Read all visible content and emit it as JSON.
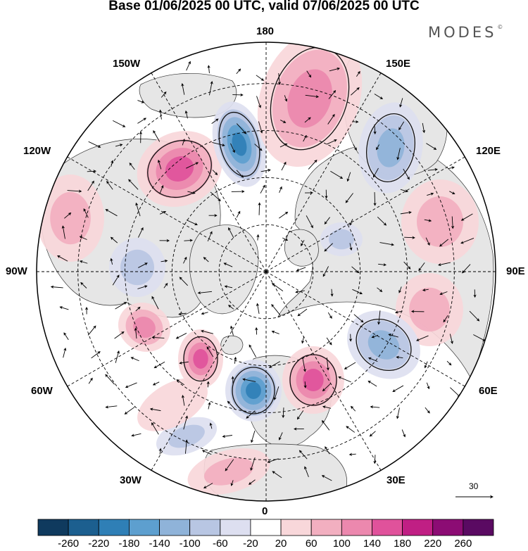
{
  "title": "Base 01/06/2025 00 UTC, valid 07/06/2025 00 UTC",
  "brand": "MODES",
  "brand_mark": "©",
  "longitude_labels": {
    "top": "180",
    "bottom": "0",
    "left": "90W",
    "right": "90E",
    "upper_left_outer": "120W",
    "upper_left_inner": "150W",
    "upper_right_inner": "150E",
    "upper_right_outer": "120E",
    "lower_left_outer": "60W",
    "lower_left_inner": "30W",
    "lower_right_inner": "30E",
    "lower_right_outer": "60E"
  },
  "vector_reference": {
    "value": "30"
  },
  "colorbar": {
    "labels": [
      "-260",
      "-220",
      "-180",
      "-140",
      "-100",
      "-60",
      "-20",
      "20",
      "60",
      "100",
      "140",
      "180",
      "220",
      "260"
    ],
    "colors": [
      "#0f3a5e",
      "#1c5f8f",
      "#2f7fb6",
      "#5d9fcf",
      "#8fb3d9",
      "#b8c6e3",
      "#dddff0",
      "#ffffff",
      "#f8d7da",
      "#f2afc0",
      "#ec88ae",
      "#e0529b",
      "#c01f84",
      "#8c0c74",
      "#5a0a62"
    ]
  },
  "map_colors": {
    "land": "#e6e6e6",
    "ocean": "#ffffff",
    "coast": "#333333",
    "grid": "#000000"
  },
  "anomalies": [
    {
      "name": "pink-low-120w",
      "sign": "positive",
      "level": 4
    },
    {
      "name": "blue-150w-180",
      "sign": "negative",
      "level": 5
    },
    {
      "name": "pink-180-150e",
      "sign": "positive",
      "level": 3
    },
    {
      "name": "blue-150e-120e",
      "sign": "negative",
      "level": 3
    },
    {
      "name": "pink-105w",
      "sign": "positive",
      "level": 2
    },
    {
      "name": "pink-90e-upper",
      "sign": "positive",
      "level": 2
    },
    {
      "name": "pink-90e-lower",
      "sign": "positive",
      "level": 2
    },
    {
      "name": "blue-90w",
      "sign": "negative",
      "level": 2
    },
    {
      "name": "pink-80w",
      "sign": "positive",
      "level": 3
    },
    {
      "name": "pink-60w",
      "sign": "positive",
      "level": 4
    },
    {
      "name": "blue-0",
      "sign": "negative",
      "level": 5
    },
    {
      "name": "pink-30e",
      "sign": "positive",
      "level": 4
    },
    {
      "name": "blue-60e",
      "sign": "negative",
      "level": 3
    },
    {
      "name": "blue-40w",
      "sign": "negative",
      "level": 2
    },
    {
      "name": "pink-15w",
      "sign": "positive",
      "level": 2
    },
    {
      "name": "pink-atlantic",
      "sign": "positive",
      "level": 1
    },
    {
      "name": "blue-75e",
      "sign": "negative",
      "level": 2
    }
  ]
}
